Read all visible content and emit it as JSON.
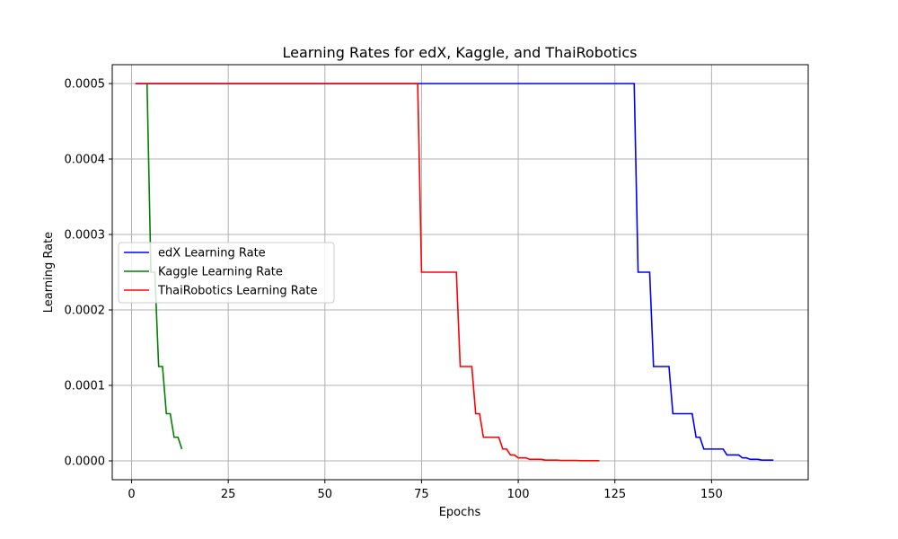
{
  "chart_data": {
    "type": "line",
    "title": "Learning Rates for edX, Kaggle, and ThaiRobotics",
    "xlabel": "Epochs",
    "ylabel": "Learning Rate",
    "xlim": [
      -5,
      175
    ],
    "ylim": [
      -2.5e-05,
      0.000525
    ],
    "xticks": [
      0,
      25,
      50,
      75,
      100,
      125,
      150
    ],
    "xtick_labels": [
      "0",
      "25",
      "50",
      "75",
      "100",
      "125",
      "150"
    ],
    "yticks": [
      0,
      0.0001,
      0.0002,
      0.0003,
      0.0004,
      0.0005
    ],
    "ytick_labels": [
      "0.0000",
      "0.0001",
      "0.0002",
      "0.0003",
      "0.0004",
      "0.0005"
    ],
    "grid": true,
    "legend_position": "center-left",
    "series": [
      {
        "name": "edX Learning Rate",
        "color": "#0000ff",
        "points": [
          [
            1,
            0.0005
          ],
          [
            130,
            0.0005
          ],
          [
            131,
            0.00025
          ],
          [
            134,
            0.00025
          ],
          [
            135,
            0.000125
          ],
          [
            139,
            0.000125
          ],
          [
            140,
            6.25e-05
          ],
          [
            145,
            6.25e-05
          ],
          [
            146,
            3.125e-05
          ],
          [
            147,
            3.125e-05
          ],
          [
            148,
            1.5625e-05
          ],
          [
            153,
            1.5625e-05
          ],
          [
            154,
            7.8e-06
          ],
          [
            157,
            7.8e-06
          ],
          [
            158,
            3.9e-06
          ],
          [
            159,
            3.9e-06
          ],
          [
            160,
            1.95e-06
          ],
          [
            162,
            1.95e-06
          ],
          [
            163,
            9.8e-07
          ],
          [
            166,
            9.8e-07
          ]
        ]
      },
      {
        "name": "Kaggle Learning Rate",
        "color": "#008000",
        "points": [
          [
            4,
            0.0005
          ],
          [
            5,
            0.00025
          ],
          [
            6,
            0.00025
          ],
          [
            7,
            0.000125
          ],
          [
            8,
            0.000125
          ],
          [
            9,
            6.25e-05
          ],
          [
            10,
            6.25e-05
          ],
          [
            11,
            3.125e-05
          ],
          [
            12,
            3.125e-05
          ],
          [
            13,
            1.5625e-05
          ]
        ]
      },
      {
        "name": "ThaiRobotics Learning Rate",
        "color": "#ff0000",
        "points": [
          [
            1,
            0.0005
          ],
          [
            74,
            0.0005
          ],
          [
            75,
            0.00025
          ],
          [
            84,
            0.00025
          ],
          [
            85,
            0.000125
          ],
          [
            88,
            0.000125
          ],
          [
            89,
            6.25e-05
          ],
          [
            90,
            6.25e-05
          ],
          [
            91,
            3.125e-05
          ],
          [
            95,
            3.125e-05
          ],
          [
            96,
            1.5625e-05
          ],
          [
            97,
            1.5625e-05
          ],
          [
            98,
            7.8e-06
          ],
          [
            99,
            7.8e-06
          ],
          [
            100,
            3.9e-06
          ],
          [
            102,
            3.9e-06
          ],
          [
            103,
            1.95e-06
          ],
          [
            106,
            1.95e-06
          ],
          [
            107,
            9.8e-07
          ],
          [
            110,
            9.8e-07
          ],
          [
            111,
            5e-07
          ],
          [
            115,
            5e-07
          ],
          [
            116,
            2.5e-07
          ],
          [
            121,
            2.5e-07
          ]
        ]
      }
    ]
  }
}
